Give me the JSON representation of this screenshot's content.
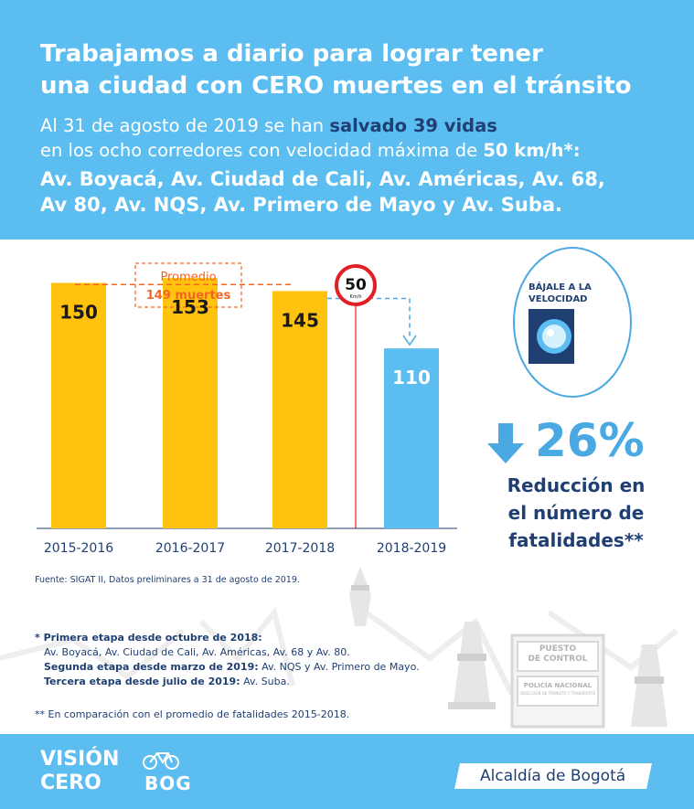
{
  "header": {
    "title_line1": "Trabajamos a diario para lograr tener",
    "title_line2": "una ciudad con CERO muertes en el tránsito",
    "sub_part1": "Al 31 de agosto de 2019 se han ",
    "sub_highlight": "salvado 39 vidas",
    "sub_part2": "en los ocho corredores con velocidad máxima de ",
    "sub_speed": "50 km/h*:",
    "corridors_line1": "Av. Boyacá, Av. Ciudad de Cali, Av. Américas, Av. 68,",
    "corridors_line2": "Av 80, Av. NQS, Av. Primero de Mayo y Av. Suba."
  },
  "chart_data": {
    "type": "bar",
    "categories": [
      "2015-2016",
      "2016-2017",
      "2017-2018",
      "2018-2019"
    ],
    "values": [
      150,
      153,
      145,
      110
    ],
    "data_labels": [
      "150",
      "153",
      "145",
      "110"
    ],
    "ylim": [
      0,
      170
    ],
    "colors": [
      "#ffc20e",
      "#ffc20e",
      "#ffc20e",
      "#5bbdf0"
    ],
    "average": {
      "label_line1": "Promedio",
      "label_line2": "149 muertes",
      "value": 149
    },
    "speed_sign": {
      "value": "50",
      "unit": "Km/h"
    },
    "xlabel": "",
    "ylabel": ""
  },
  "side": {
    "sign_text_line1": "BÁJALE A LA",
    "sign_text_line2": "VELOCIDAD",
    "percent": "26%",
    "desc_line1": "Reducción en",
    "desc_line2": "el número de",
    "desc_line3": "fatalidades**"
  },
  "source": "Fuente: SIGAT II, Datos preliminares a 31 de agosto de 2019.",
  "notes": {
    "n1_bold": "* Primera etapa desde octubre de 2018:",
    "n1_text": "Av. Boyacá, Av. Ciudad de Cali, Av. Américas, Av. 68 y Av. 80.",
    "n2_bold": "Segunda etapa desde marzo de 2019:",
    "n2_text": " Av. NQS y Av. Primero de Mayo.",
    "n3_bold": "Tercera etapa desde julio de 2019:",
    "n3_text": " Av. Suba.",
    "n4": "** En comparación con el promedio de fatalidades 2015-2018."
  },
  "booth": {
    "line1": "PUESTO",
    "line2": "DE CONTROL",
    "line3": "POLICÍA NACIONAL",
    "line4": "DIRECCIÓN DE TRÁNSITO Y TRANSPORTE"
  },
  "footer": {
    "logo_line1": "VISIÓN",
    "logo_line2": "CERO",
    "logo_bog": "BOG",
    "alcaldia": "Alcaldía de Bogotá"
  },
  "colors": {
    "accent_blue": "#5bbdf0",
    "navy": "#1f3f73",
    "bar_yellow": "#ffc20e",
    "average_orange": "#f26522",
    "sign_red": "#e31e24"
  }
}
